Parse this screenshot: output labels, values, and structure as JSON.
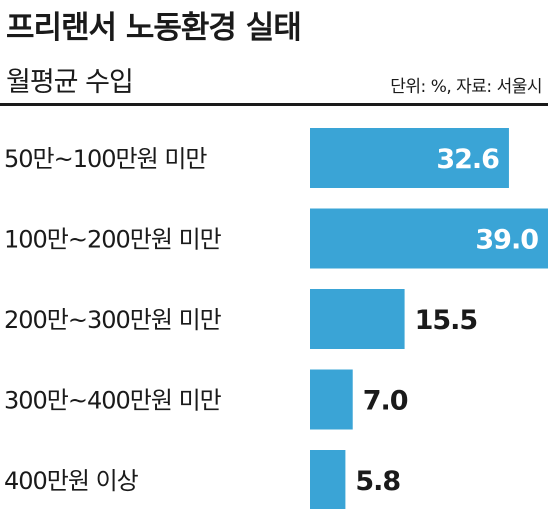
{
  "header": {
    "title": "프리랜서 노동환경 실태",
    "subtitle": "월평균 수입",
    "source": "단위: %, 자료: 서울시"
  },
  "colors": {
    "bar": "#3aa4d6",
    "value_inside": "#ffffff",
    "value_outside": "#1a1a1a"
  },
  "chart_data": {
    "type": "bar",
    "orientation": "horizontal",
    "title": "프리랜서 노동환경 실태",
    "subtitle": "월평균 수입",
    "unit": "%",
    "source": "서울시",
    "categories": [
      "50만~100만원 미만",
      "100만~200만원 미만",
      "200만~300만원 미만",
      "300만~400만원 미만",
      "400만원 이상"
    ],
    "values": [
      32.6,
      39.0,
      15.5,
      7.0,
      5.8
    ],
    "value_labels": [
      "32.6",
      "39.0",
      "15.5",
      "7.0",
      "5.8"
    ],
    "xlim": [
      0,
      39.0
    ],
    "grid": false,
    "legend": "none"
  }
}
